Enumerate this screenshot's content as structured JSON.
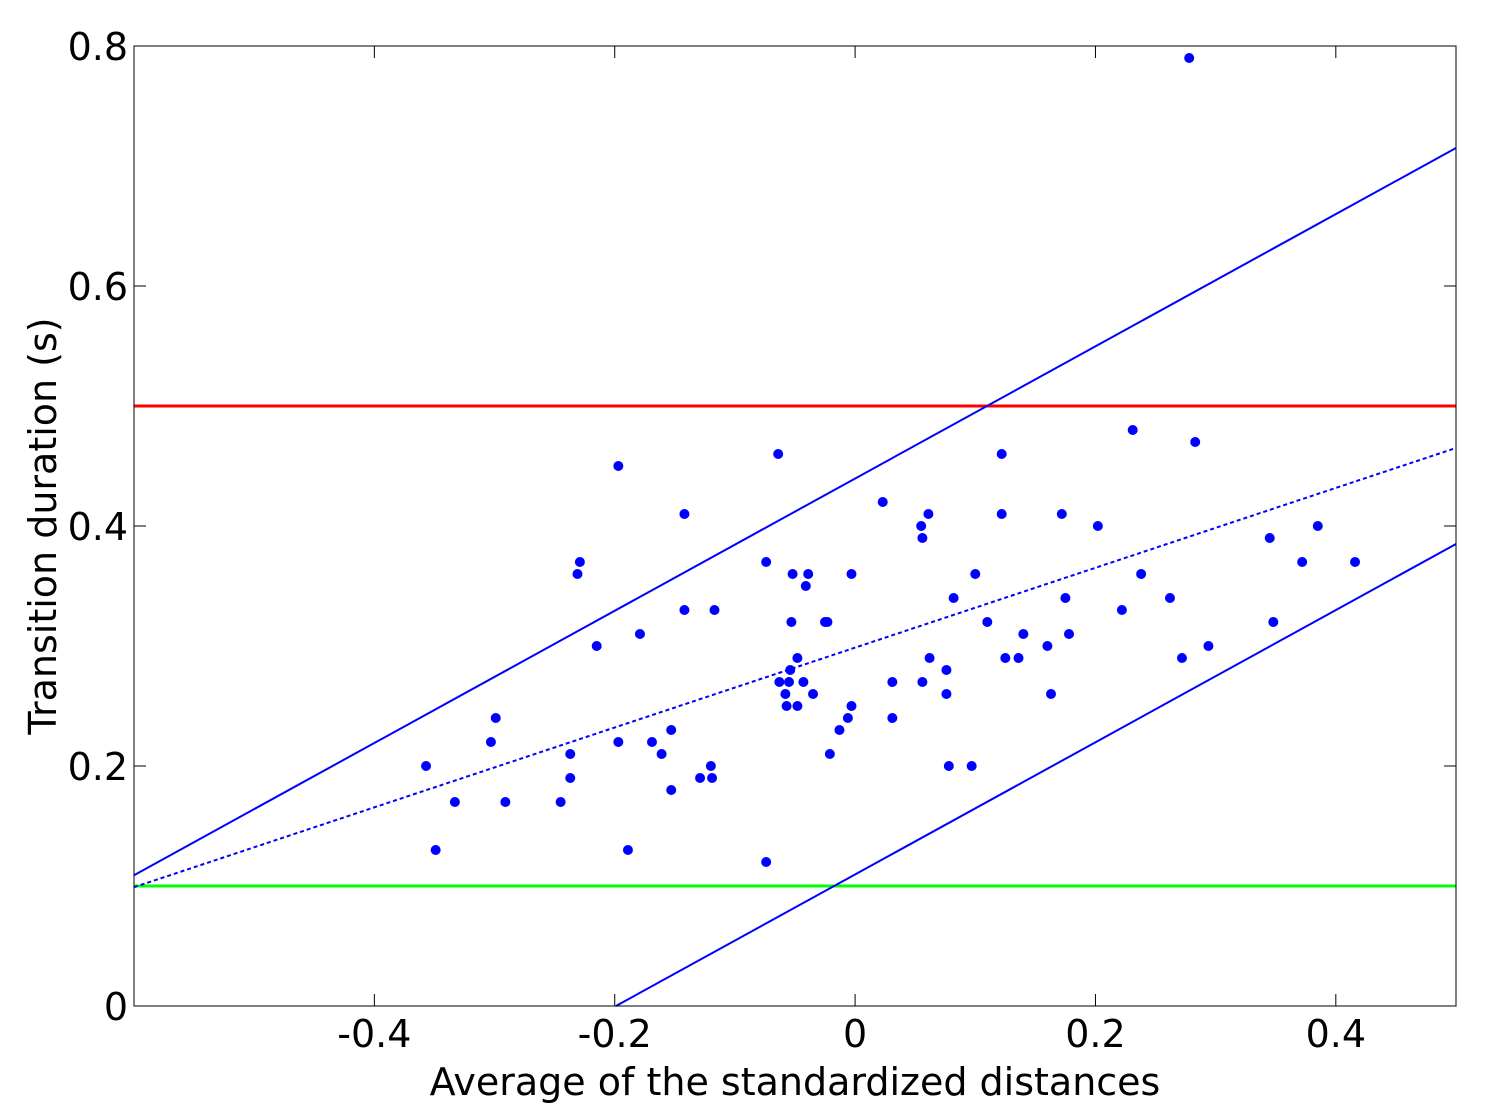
{
  "chart_data": {
    "type": "scatter",
    "title": "",
    "xlabel": "Average of the standardized distances",
    "ylabel": "Transition duration (s)",
    "xlim": [
      -0.6,
      0.5
    ],
    "ylim": [
      0,
      0.8
    ],
    "xticks": [
      -0.4,
      -0.2,
      0,
      0.2,
      0.4
    ],
    "xtick_labels": [
      "-0.4",
      "-0.2",
      "0",
      "0.2",
      "0.4"
    ],
    "yticks": [
      0,
      0.2,
      0.4,
      0.6,
      0.8
    ],
    "ytick_labels": [
      "0",
      "0.2",
      "0.4",
      "0.6",
      "0.8"
    ],
    "grid": false,
    "legend": "none",
    "colors": {
      "points": "#0000ff",
      "fit": "#0000ff",
      "upper_threshold": "#ff0000",
      "lower_threshold": "#00ff00",
      "axes": "#000000"
    },
    "points": [
      {
        "x": -0.357,
        "y": 0.2
      },
      {
        "x": -0.349,
        "y": 0.13
      },
      {
        "x": -0.333,
        "y": 0.17
      },
      {
        "x": -0.303,
        "y": 0.22
      },
      {
        "x": -0.299,
        "y": 0.24
      },
      {
        "x": -0.291,
        "y": 0.17
      },
      {
        "x": -0.245,
        "y": 0.17
      },
      {
        "x": -0.237,
        "y": 0.21
      },
      {
        "x": -0.237,
        "y": 0.19
      },
      {
        "x": -0.231,
        "y": 0.36
      },
      {
        "x": -0.229,
        "y": 0.37
      },
      {
        "x": -0.215,
        "y": 0.3
      },
      {
        "x": -0.197,
        "y": 0.45
      },
      {
        "x": -0.197,
        "y": 0.22
      },
      {
        "x": -0.189,
        "y": 0.13
      },
      {
        "x": -0.179,
        "y": 0.31
      },
      {
        "x": -0.169,
        "y": 0.22
      },
      {
        "x": -0.161,
        "y": 0.21
      },
      {
        "x": -0.153,
        "y": 0.23
      },
      {
        "x": -0.153,
        "y": 0.18
      },
      {
        "x": -0.142,
        "y": 0.41
      },
      {
        "x": -0.142,
        "y": 0.33
      },
      {
        "x": -0.129,
        "y": 0.19
      },
      {
        "x": -0.12,
        "y": 0.2
      },
      {
        "x": -0.119,
        "y": 0.19
      },
      {
        "x": -0.117,
        "y": 0.33
      },
      {
        "x": -0.074,
        "y": 0.37
      },
      {
        "x": -0.074,
        "y": 0.12
      },
      {
        "x": -0.064,
        "y": 0.46
      },
      {
        "x": -0.063,
        "y": 0.27
      },
      {
        "x": -0.058,
        "y": 0.26
      },
      {
        "x": -0.057,
        "y": 0.25
      },
      {
        "x": -0.055,
        "y": 0.27
      },
      {
        "x": -0.054,
        "y": 0.28
      },
      {
        "x": -0.053,
        "y": 0.32
      },
      {
        "x": -0.052,
        "y": 0.36
      },
      {
        "x": -0.048,
        "y": 0.29
      },
      {
        "x": -0.048,
        "y": 0.25
      },
      {
        "x": -0.043,
        "y": 0.27
      },
      {
        "x": -0.041,
        "y": 0.35
      },
      {
        "x": -0.039,
        "y": 0.36
      },
      {
        "x": -0.035,
        "y": 0.26
      },
      {
        "x": -0.025,
        "y": 0.32
      },
      {
        "x": -0.023,
        "y": 0.32
      },
      {
        "x": -0.021,
        "y": 0.21
      },
      {
        "x": -0.013,
        "y": 0.23
      },
      {
        "x": -0.006,
        "y": 0.24
      },
      {
        "x": -0.003,
        "y": 0.36
      },
      {
        "x": -0.003,
        "y": 0.25
      },
      {
        "x": 0.023,
        "y": 0.42
      },
      {
        "x": 0.031,
        "y": 0.27
      },
      {
        "x": 0.031,
        "y": 0.24
      },
      {
        "x": 0.055,
        "y": 0.4
      },
      {
        "x": 0.056,
        "y": 0.39
      },
      {
        "x": 0.056,
        "y": 0.27
      },
      {
        "x": 0.061,
        "y": 0.41
      },
      {
        "x": 0.062,
        "y": 0.29
      },
      {
        "x": 0.076,
        "y": 0.28
      },
      {
        "x": 0.076,
        "y": 0.26
      },
      {
        "x": 0.078,
        "y": 0.2
      },
      {
        "x": 0.082,
        "y": 0.34
      },
      {
        "x": 0.097,
        "y": 0.2
      },
      {
        "x": 0.1,
        "y": 0.36
      },
      {
        "x": 0.11,
        "y": 0.32
      },
      {
        "x": 0.122,
        "y": 0.46
      },
      {
        "x": 0.122,
        "y": 0.41
      },
      {
        "x": 0.125,
        "y": 0.29
      },
      {
        "x": 0.136,
        "y": 0.29
      },
      {
        "x": 0.14,
        "y": 0.31
      },
      {
        "x": 0.16,
        "y": 0.3
      },
      {
        "x": 0.163,
        "y": 0.26
      },
      {
        "x": 0.172,
        "y": 0.41
      },
      {
        "x": 0.175,
        "y": 0.34
      },
      {
        "x": 0.178,
        "y": 0.31
      },
      {
        "x": 0.202,
        "y": 0.4
      },
      {
        "x": 0.222,
        "y": 0.33
      },
      {
        "x": 0.231,
        "y": 0.48
      },
      {
        "x": 0.238,
        "y": 0.36
      },
      {
        "x": 0.262,
        "y": 0.34
      },
      {
        "x": 0.272,
        "y": 0.29
      },
      {
        "x": 0.278,
        "y": 0.79
      },
      {
        "x": 0.283,
        "y": 0.47
      },
      {
        "x": 0.294,
        "y": 0.3
      },
      {
        "x": 0.345,
        "y": 0.39
      },
      {
        "x": 0.348,
        "y": 0.32
      },
      {
        "x": 0.372,
        "y": 0.37
      },
      {
        "x": 0.385,
        "y": 0.4
      },
      {
        "x": 0.416,
        "y": 0.37
      }
    ],
    "lines": [
      {
        "role": "fit",
        "style": "dotted",
        "color": "#0000ff",
        "x": [
          -0.6,
          0.5
        ],
        "y": [
          0.099,
          0.465
        ]
      },
      {
        "role": "upper-bound",
        "style": "solid",
        "color": "#0000ff",
        "x": [
          -0.6,
          0.5
        ],
        "y": [
          0.109,
          0.715
        ]
      },
      {
        "role": "lower-bound",
        "style": "solid",
        "color": "#0000ff",
        "x": [
          -0.199,
          0.5
        ],
        "y": [
          0.0,
          0.385
        ]
      },
      {
        "role": "upper-threshold",
        "style": "solid",
        "color": "#ff0000",
        "x": [
          -0.6,
          0.5
        ],
        "y": [
          0.5,
          0.5
        ]
      },
      {
        "role": "lower-threshold",
        "style": "solid",
        "color": "#00ff00",
        "x": [
          -0.6,
          0.5
        ],
        "y": [
          0.1,
          0.1
        ]
      }
    ]
  }
}
